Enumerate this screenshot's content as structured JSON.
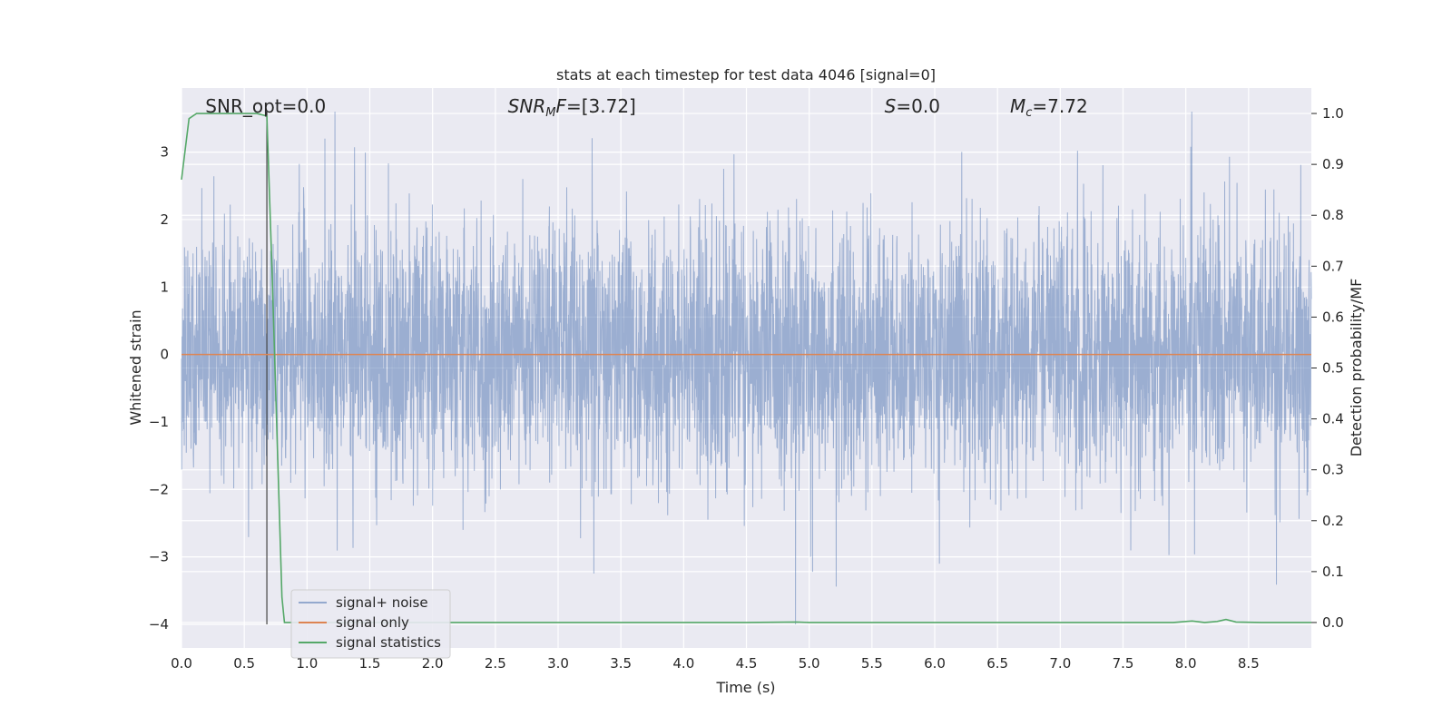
{
  "chart_data": {
    "type": "line",
    "title": "stats at each timestep for test data 4046 [signal=0]",
    "xlabel": "Time (s)",
    "ylabel": "Whitened strain",
    "y2label": "Detection probability/MF",
    "xlim": [
      0,
      9.0
    ],
    "ylim": [
      -4.35,
      3.95
    ],
    "y2lim": [
      -0.05,
      1.05
    ],
    "xticks": [
      0.0,
      0.5,
      1.0,
      1.5,
      2.0,
      2.5,
      3.0,
      3.5,
      4.0,
      4.5,
      5.0,
      5.5,
      6.0,
      6.5,
      7.0,
      7.5,
      8.0,
      8.5
    ],
    "xtick_labels": [
      "0.0",
      "0.5",
      "1.0",
      "1.5",
      "2.0",
      "2.5",
      "3.0",
      "3.5",
      "4.0",
      "4.5",
      "5.0",
      "5.5",
      "6.0",
      "6.5",
      "7.0",
      "7.5",
      "8.0",
      "8.5"
    ],
    "yticks": [
      3,
      2,
      1,
      0,
      -1,
      -2,
      -3,
      -4
    ],
    "ytick_labels": [
      "3",
      "2",
      "1",
      "0",
      "−1",
      "−2",
      "−3",
      "−4"
    ],
    "y2ticks": [
      1.0,
      0.9,
      0.8,
      0.7,
      0.6,
      0.5,
      0.4,
      0.3,
      0.2,
      0.1,
      0.0
    ],
    "y2tick_labels": [
      "1.0",
      "0.9",
      "0.8",
      "0.7",
      "0.6",
      "0.5",
      "0.4",
      "0.3",
      "0.2",
      "0.1",
      "0.0"
    ],
    "grid": true,
    "legend_position": "lower-left",
    "annotations": [
      {
        "text": "SNR_opt=0.0",
        "x": 0.19
      },
      {
        "text": "SNR_MF=[3.72]",
        "x": 2.6
      },
      {
        "text": "S=0.0",
        "x": 5.6
      },
      {
        "text": "M_c=7.72",
        "x": 6.6
      }
    ],
    "vline": {
      "x": 0.68,
      "y_from": -4.0,
      "y_to": 3.6
    },
    "noise_series": {
      "name": "signal+ noise",
      "color": "#4c72b0",
      "count": 4500,
      "seed": 4046,
      "std": 0.95,
      "x_range": [
        0,
        9.0
      ]
    },
    "series": [
      {
        "name": "signal only",
        "color": "#dd8452",
        "axis": "left",
        "x": [
          0,
          9.0
        ],
        "y": [
          0,
          0
        ]
      },
      {
        "name": "signal statistics",
        "color": "#55a868",
        "axis": "right",
        "x": [
          0.0,
          0.06,
          0.12,
          0.2,
          0.4,
          0.6,
          0.68,
          0.72,
          0.8,
          0.82,
          1.5,
          3.0,
          4.5,
          4.9,
          5.0,
          6.0,
          7.0,
          7.9,
          8.05,
          8.15,
          8.25,
          8.32,
          8.4,
          8.6,
          9.0
        ],
        "y": [
          0.87,
          0.99,
          1.0,
          1.0,
          1.0,
          1.0,
          0.995,
          0.7,
          0.05,
          0.0,
          0.0,
          0.0,
          0.0,
          0.001,
          0.0,
          0.0,
          0.0,
          0.0,
          0.003,
          0.0,
          0.002,
          0.006,
          0.001,
          0.0,
          0.0
        ]
      }
    ]
  }
}
